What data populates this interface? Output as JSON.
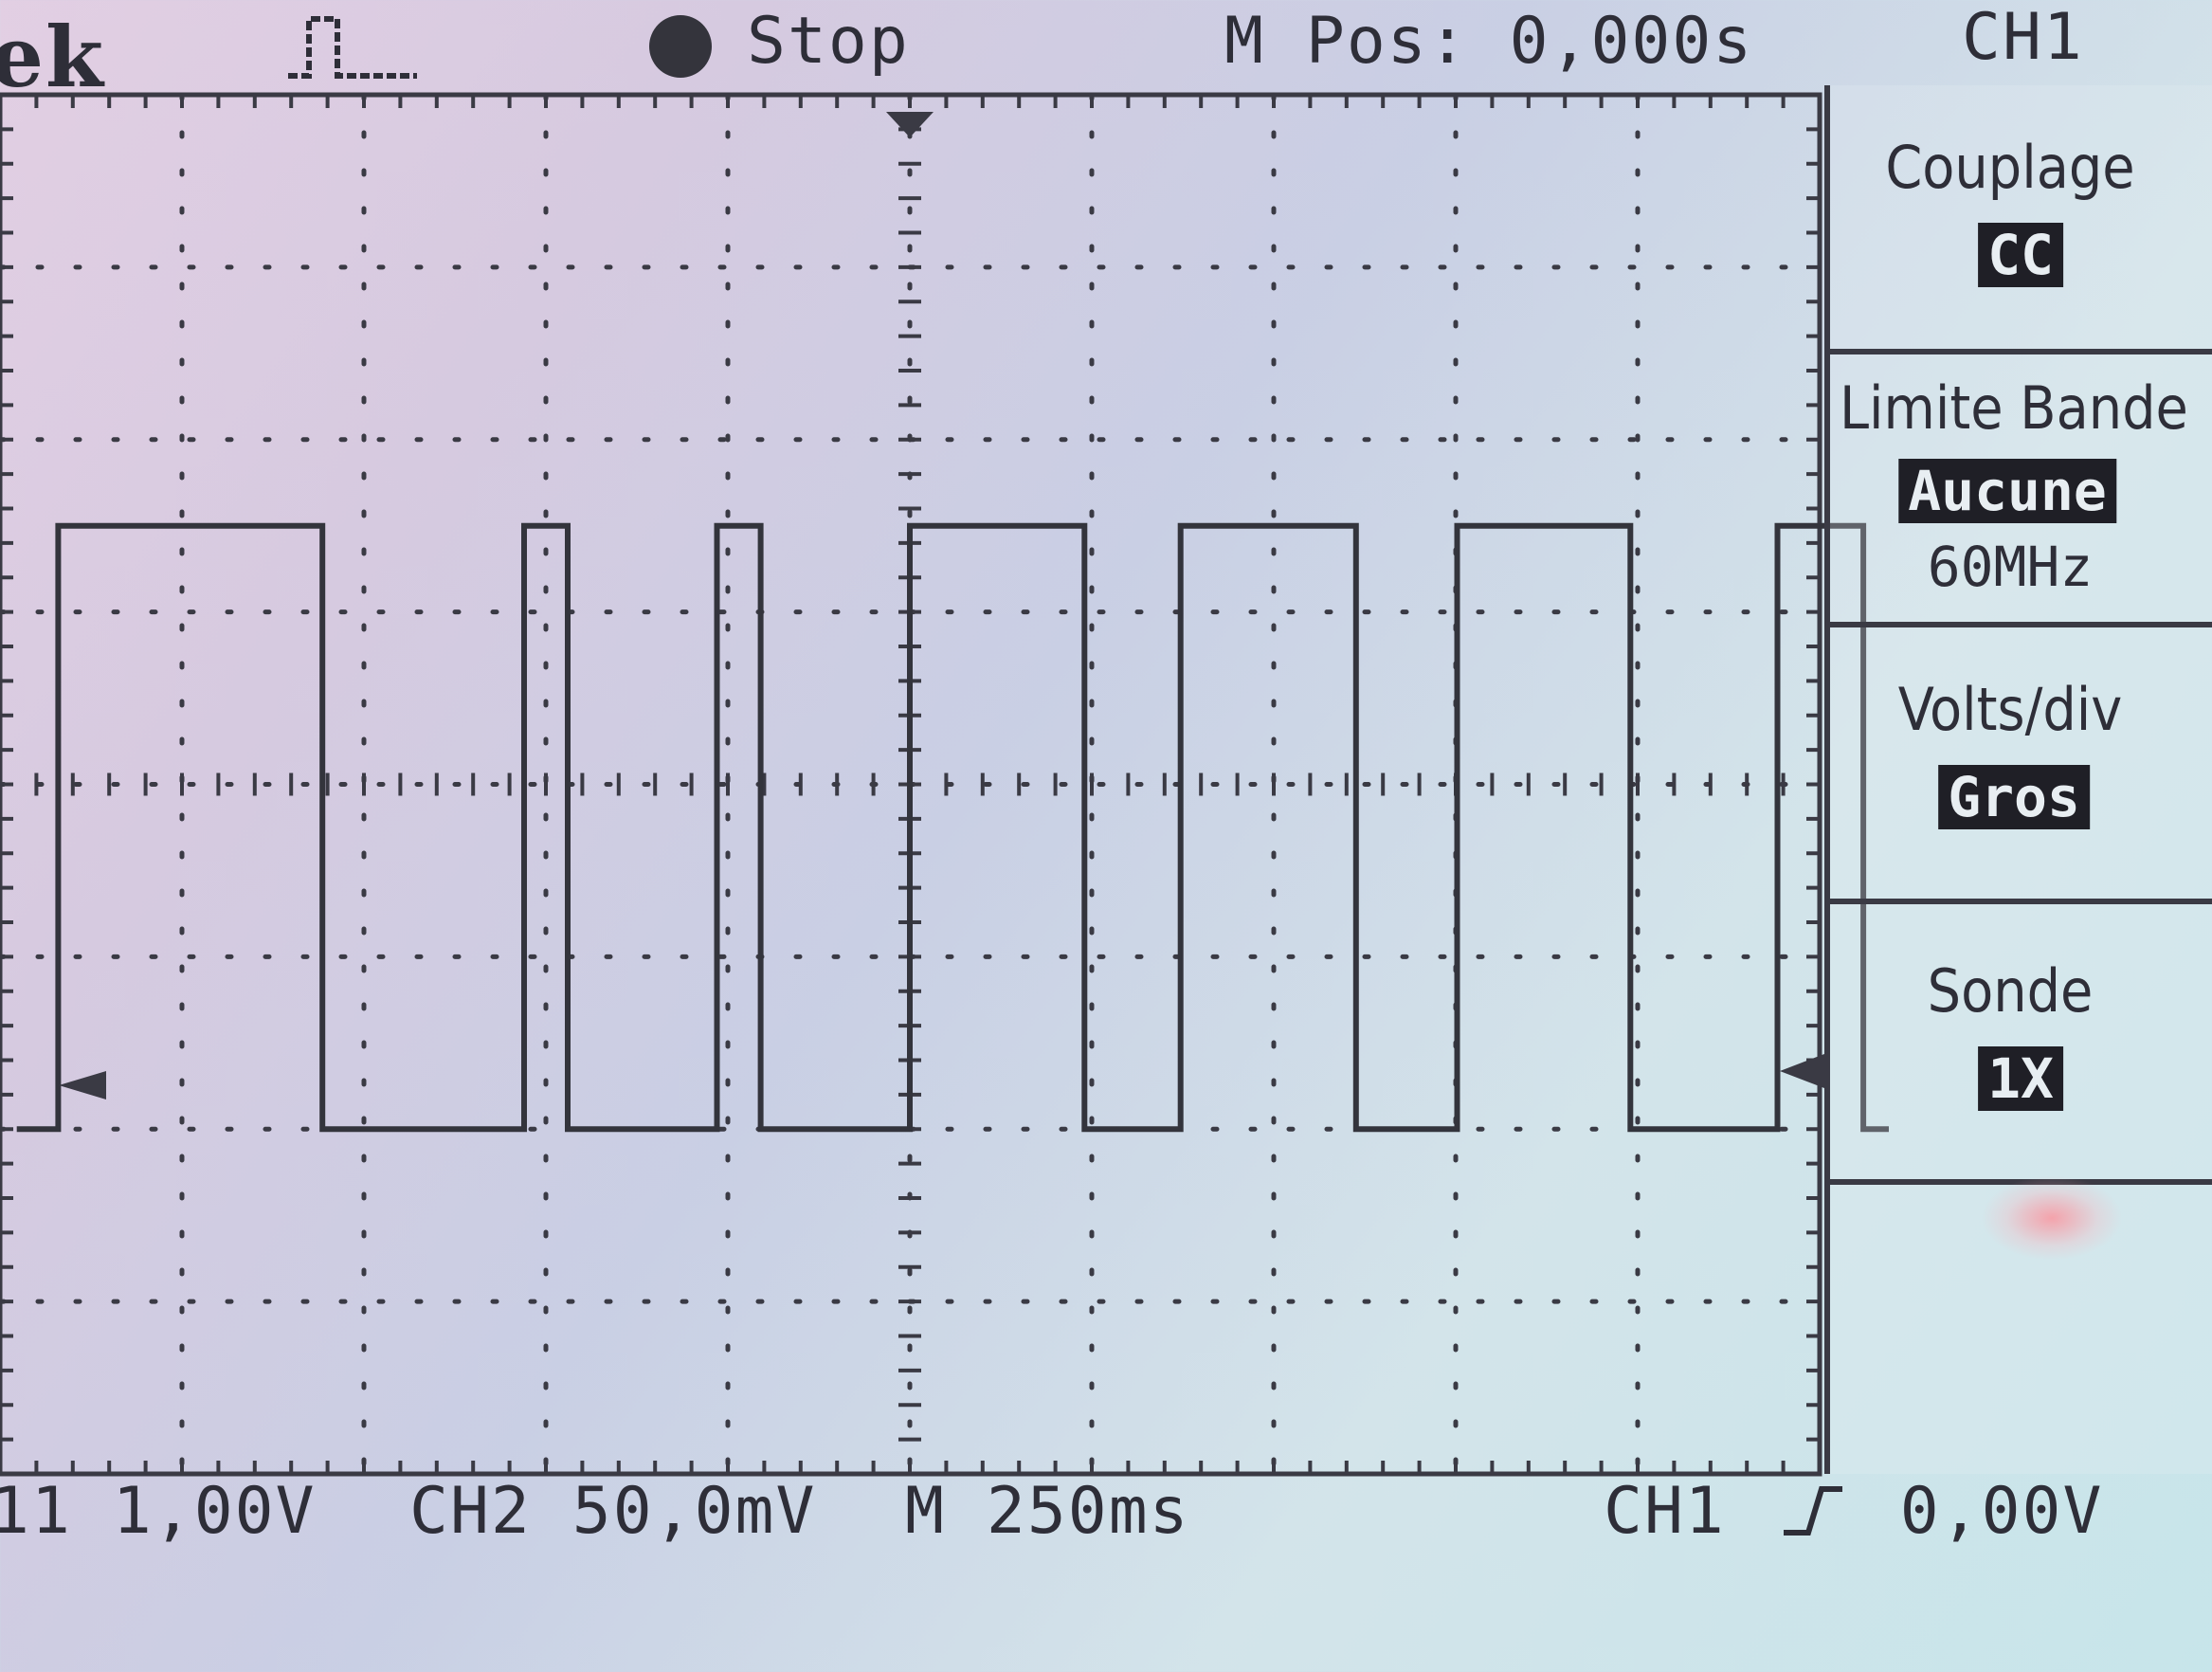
{
  "header": {
    "brand": "ek",
    "trigger_icon": "pulse-icon",
    "run_state": "Stop",
    "horizontal_position": "M Pos: 0,000s",
    "menu_channel": "CH1"
  },
  "menu": {
    "items": [
      {
        "title": "Couplage",
        "value": "CC"
      },
      {
        "title": "Limite Bande",
        "value": "Aucune",
        "secondary": "60MHz"
      },
      {
        "title": "Volts/div",
        "value": "Gros"
      },
      {
        "title": "Sonde",
        "value": "1X"
      }
    ]
  },
  "footer": {
    "ch1_scale": "11 1,00V",
    "ch2_scale": "CH2 50,0mV",
    "timebase": "M 250ms",
    "trigger_source": "CH1",
    "trigger_icon": "rising-edge-icon",
    "trigger_level": "0,00V"
  },
  "colors": {
    "trace": "#33343c",
    "grid": "#3a3a44"
  },
  "chart_data": {
    "type": "line",
    "x_unit": "s",
    "y_unit": "V",
    "x_per_div": 0.25,
    "y_per_div": 1.0,
    "xlim": [
      -1.25,
      1.25
    ],
    "ylim": [
      -4,
      4
    ],
    "grid": true,
    "series": [
      {
        "x": [
          -1.227,
          -1.17,
          -1.17,
          -0.807,
          -0.807,
          -0.53,
          -0.53,
          -0.47,
          -0.47,
          -0.265,
          -0.265,
          -0.205,
          -0.205,
          0.0,
          0.0,
          0.24,
          0.24,
          0.372,
          0.372,
          0.613,
          0.613,
          0.752,
          0.752,
          0.99,
          0.99,
          1.192,
          1.192,
          1.31,
          1.31,
          1.345
        ],
        "y": [
          -2.0,
          -2.0,
          1.5,
          1.5,
          -2.0,
          -2.0,
          1.5,
          1.5,
          -2.0,
          -2.0,
          1.5,
          1.5,
          -2.0,
          -2.0,
          1.5,
          1.5,
          -2.0,
          -2.0,
          1.5,
          1.5,
          -2.0,
          -2.0,
          1.5,
          1.5,
          -2.0,
          -2.0,
          1.5,
          1.5,
          -2.0,
          -2.0
        ]
      }
    ]
  }
}
